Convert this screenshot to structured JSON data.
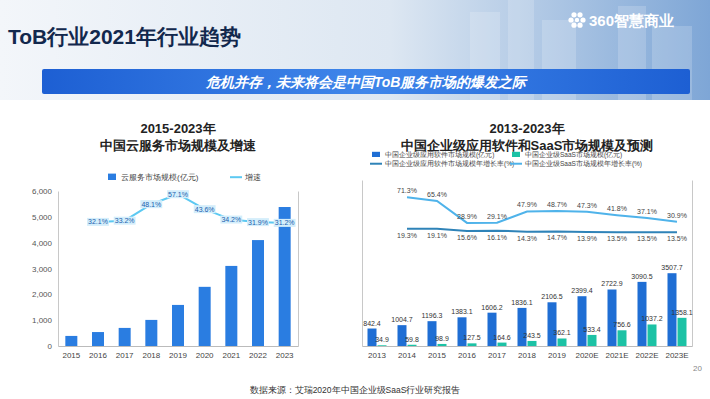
{
  "slide": {
    "title": "ToB行业2021年行业趋势",
    "logo": "360智慧商业",
    "banner": "危机并存，未来将会是中国ToB服务市场的爆发之际",
    "source": "数据来源：艾瑞2020年中国企业级SaaS行业研究报告",
    "page": 20
  },
  "chart_data": [
    {
      "type": "bar",
      "title": "2015-2023年",
      "subtitle": "中国云服务市场规模及增速",
      "categories": [
        "2015",
        "2016",
        "2017",
        "2018",
        "2019",
        "2020",
        "2021",
        "2022",
        "2023"
      ],
      "series": [
        {
          "name": "云服务市场规模(亿元)",
          "type": "bar",
          "color": "#2a7de1",
          "values": [
            390,
            540,
            700,
            1010,
            1590,
            2290,
            3100,
            4100,
            5380
          ]
        },
        {
          "name": "增速",
          "type": "line",
          "color": "#5cc9f2",
          "axis": "y2",
          "data_labels": true,
          "values": [
            null,
            32.1,
            33.2,
            48.1,
            57.1,
            43.6,
            34.2,
            31.9,
            31.2
          ],
          "value_labels": [
            null,
            "32.1%",
            "33.2%",
            "48.1%",
            "57.1%",
            "43.6%",
            "34.2%",
            "31.9%",
            "31.2%"
          ]
        }
      ],
      "ylim": [
        0,
        6000
      ],
      "yticks": [
        0,
        {
          "value": 1000,
          "label": "1,000"
        },
        {
          "value": 2000,
          "label": "2,000"
        },
        {
          "value": 3000,
          "label": "3,000"
        },
        {
          "value": 4000,
          "label": "4,000"
        },
        {
          "value": 5000,
          "label": "5,000"
        },
        {
          "value": 6000,
          "label": "6,000"
        }
      ],
      "y2lim": [
        -80,
        60
      ],
      "y2ticks": [],
      "grid": false,
      "legend": "top"
    },
    {
      "type": "bar",
      "title": "2013-2023年",
      "subtitle": "中国企业级应用软件和SaaS市场规模及预测",
      "categories": [
        "2013",
        "2014",
        "2015",
        "2016",
        "2017",
        "2018",
        "2019",
        "2020E",
        "2021E",
        "2022E",
        "2023E"
      ],
      "series": [
        {
          "name": "中国企业级应用软件市场规模(亿元)",
          "type": "bar",
          "color": "#1f6ed4",
          "values": [
            842.4,
            1004.7,
            1196.3,
            1383.1,
            1606.2,
            1836.1,
            2106.5,
            2399.4,
            2722.9,
            3090.5,
            3507.7
          ]
        },
        {
          "name": "中国企业级SaaS市场规模(亿元)",
          "type": "bar",
          "color": "#1cc2a5",
          "values": [
            34.9,
            59.8,
            98.9,
            127.5,
            164.6,
            243.5,
            362.1,
            533.4,
            756.6,
            1037.2,
            1358.1
          ]
        },
        {
          "name": "中国企业级应用软件市场规模年增长率(%)",
          "type": "line",
          "color": "#2f83b8",
          "axis": "y2",
          "values": [
            null,
            19.3,
            19.1,
            15.6,
            16.1,
            14.3,
            14.7,
            13.9,
            13.5,
            13.5,
            13.5
          ],
          "value_labels": [
            null,
            "19.3%",
            "19.1%",
            "15.6%",
            "16.1%",
            "14.3%",
            "14.7%",
            "13.9%",
            "13.5%",
            "13.5%",
            "13.5%"
          ]
        },
        {
          "name": "中国企业级SaaS市场规模年增长率(%)",
          "type": "line",
          "color": "#4fb3ea",
          "axis": "y2",
          "values": [
            null,
            71.3,
            65.4,
            28.9,
            29.1,
            47.9,
            48.7,
            47.3,
            41.8,
            37.1,
            30.9
          ],
          "value_labels": [
            null,
            "71.3%",
            "65.4%",
            "28.9%",
            "29.1%",
            "47.9%",
            "48.7%",
            "47.3%",
            "41.8%",
            "37.1%",
            "30.9%"
          ]
        }
      ],
      "ylim": [
        0,
        8000
      ],
      "yticks": [],
      "y2lim": [
        -175,
        100
      ],
      "y2ticks": [],
      "grid": false,
      "legend": "top",
      "data_labels": true,
      "tick_labels": "x"
    }
  ]
}
